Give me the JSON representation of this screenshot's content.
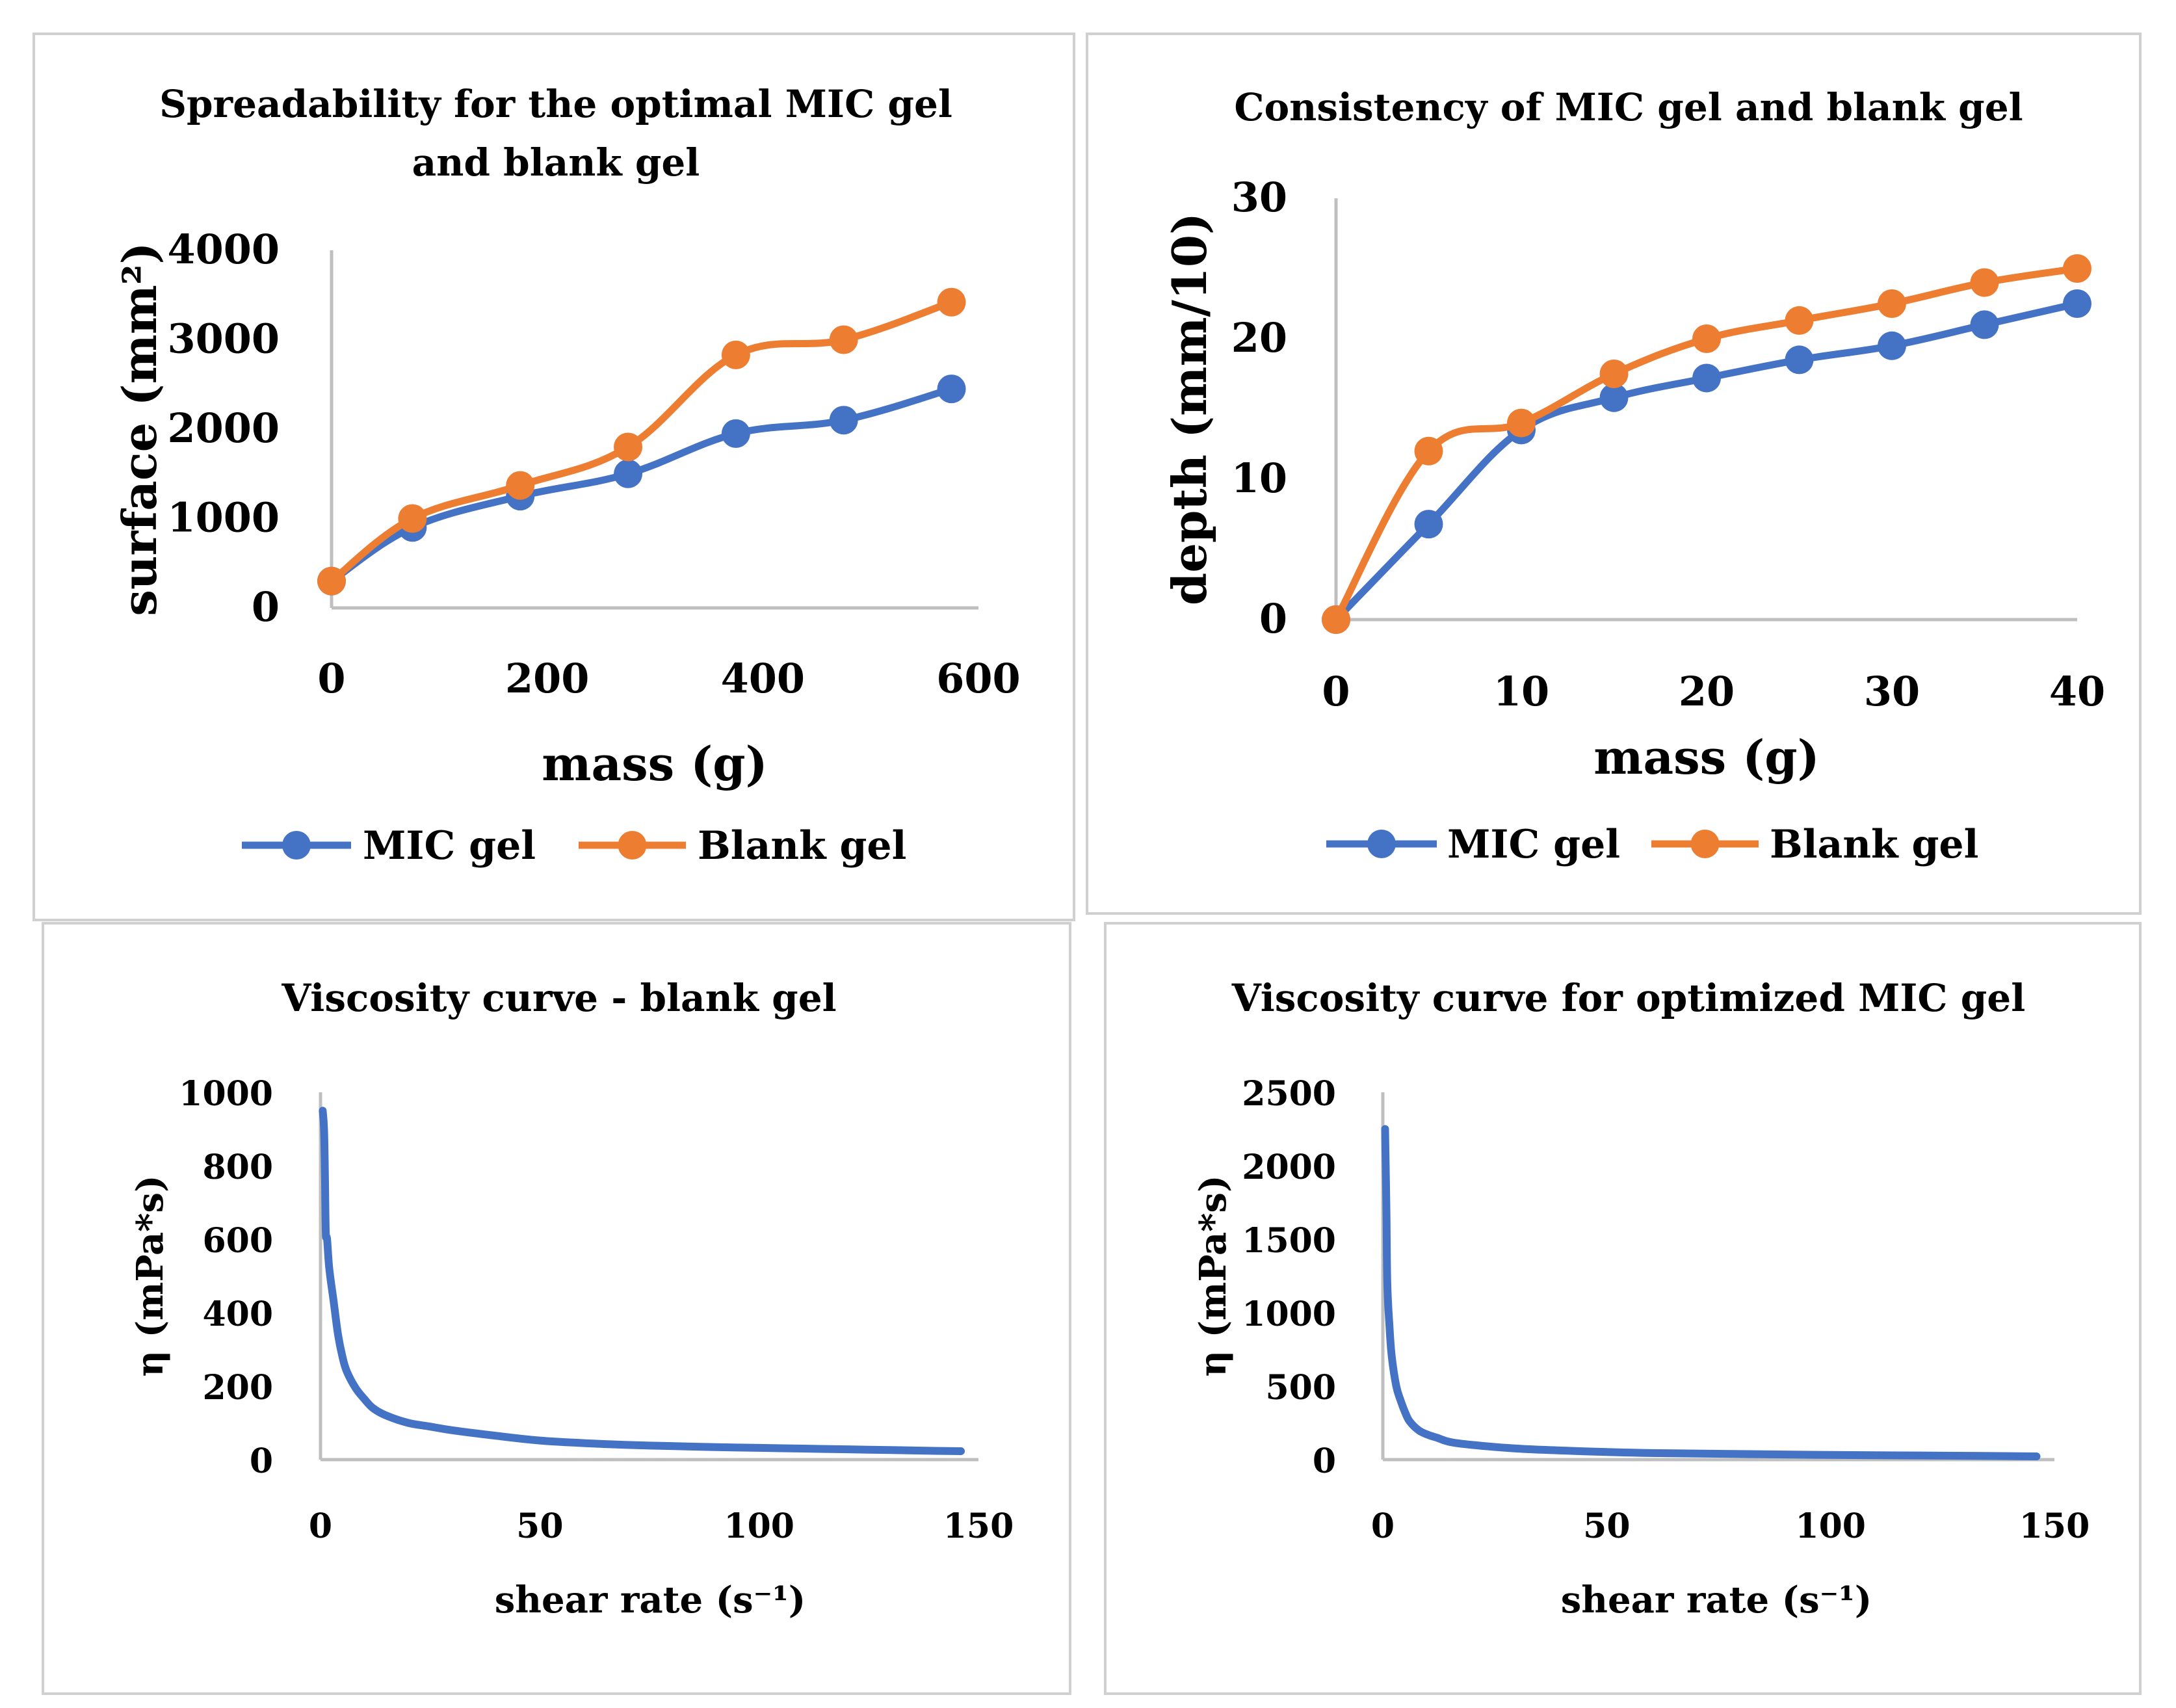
{
  "colors": {
    "mic": "#4472C4",
    "blank": "#ED7D31",
    "axis": "#BFBFBF",
    "frame": "#D0D0D0"
  },
  "chart_data": [
    {
      "id": "spread",
      "type": "line",
      "title_lines": [
        "Spreadability for the optimal MIC gel",
        "and blank gel"
      ],
      "xlabel": "mass (g)",
      "ylabel": "surface (mm²)",
      "xlim": [
        0,
        600
      ],
      "ylim": [
        0,
        4000
      ],
      "xticks": [
        0,
        200,
        400,
        600
      ],
      "yticks": [
        0,
        1000,
        2000,
        3000,
        4000
      ],
      "markers": true,
      "series": [
        {
          "name": "MIC gel",
          "x": [
            0,
            75,
            175,
            275,
            375,
            475,
            575
          ],
          "values": [
            300,
            900,
            1250,
            1500,
            1950,
            2100,
            2450
          ]
        },
        {
          "name": "Blank gel",
          "x": [
            0,
            75,
            175,
            275,
            375,
            475,
            575
          ],
          "values": [
            300,
            1000,
            1370,
            1800,
            2830,
            3000,
            3420
          ]
        }
      ],
      "legend": [
        "MIC gel",
        "Blank gel"
      ]
    },
    {
      "id": "consist",
      "type": "line",
      "title_lines": [
        "Consistency of MIC gel and blank gel"
      ],
      "xlabel": "mass (g)",
      "ylabel": "depth (mm/10)",
      "xlim": [
        0,
        40
      ],
      "ylim": [
        0,
        30
      ],
      "xticks": [
        0,
        10,
        20,
        30,
        40
      ],
      "yticks": [
        0,
        10,
        20,
        30
      ],
      "markers": true,
      "series": [
        {
          "name": "MIC gel",
          "x": [
            0,
            5,
            10,
            15,
            20,
            25,
            30,
            35,
            40
          ],
          "values": [
            0,
            6.8,
            13.5,
            15.8,
            17.2,
            18.5,
            19.5,
            21,
            22.5
          ]
        },
        {
          "name": "Blank gel",
          "x": [
            0,
            5,
            10,
            15,
            20,
            25,
            30,
            35,
            40
          ],
          "values": [
            0,
            12,
            14,
            17.5,
            20,
            21.3,
            22.5,
            24,
            25
          ]
        }
      ],
      "legend": [
        "MIC gel",
        "Blank gel"
      ]
    },
    {
      "id": "visc-blank",
      "type": "line",
      "title_lines": [
        "Viscosity curve - blank gel"
      ],
      "xlabel": "shear rate (s⁻¹)",
      "ylabel": "η (mPa*s)",
      "xlim": [
        0,
        150
      ],
      "ylim": [
        0,
        1000
      ],
      "xticks": [
        0,
        50,
        100,
        150
      ],
      "yticks": [
        0,
        200,
        400,
        600,
        800,
        1000
      ],
      "markers": false,
      "series": [
        {
          "name": "η",
          "x": [
            0.5,
            0.8,
            1.0,
            1.2,
            1.5,
            2,
            3,
            4,
            5,
            6,
            8,
            10,
            12,
            15,
            20,
            25,
            30,
            40,
            50,
            60,
            70,
            80,
            90,
            100,
            110,
            120,
            130,
            140,
            146
          ],
          "values": [
            950,
            900,
            780,
            620,
            600,
            520,
            430,
            340,
            280,
            240,
            195,
            165,
            140,
            120,
            100,
            90,
            80,
            65,
            52,
            45,
            40,
            37,
            34,
            32,
            30,
            28,
            26,
            24,
            23
          ]
        }
      ]
    },
    {
      "id": "visc-mic",
      "type": "line",
      "title_lines": [
        "Viscosity curve for optimized MIC gel"
      ],
      "xlabel": "shear rate (s⁻¹)",
      "ylabel": "η (mPa*s)",
      "xlim": [
        0,
        150
      ],
      "ylim": [
        0,
        2500
      ],
      "xticks": [
        0,
        50,
        100,
        150
      ],
      "yticks": [
        0,
        500,
        1000,
        1500,
        2000,
        2500
      ],
      "markers": false,
      "series": [
        {
          "name": "η",
          "x": [
            0.5,
            0.8,
            1.0,
            1.5,
            2,
            3,
            4,
            5,
            6,
            8,
            10,
            12,
            15,
            20,
            30,
            40,
            50,
            60,
            80,
            100,
            120,
            140,
            146
          ],
          "values": [
            2250,
            1700,
            1200,
            900,
            700,
            500,
            400,
            320,
            260,
            200,
            170,
            150,
            120,
            100,
            75,
            62,
            52,
            45,
            38,
            32,
            28,
            24,
            22
          ]
        }
      ]
    }
  ]
}
